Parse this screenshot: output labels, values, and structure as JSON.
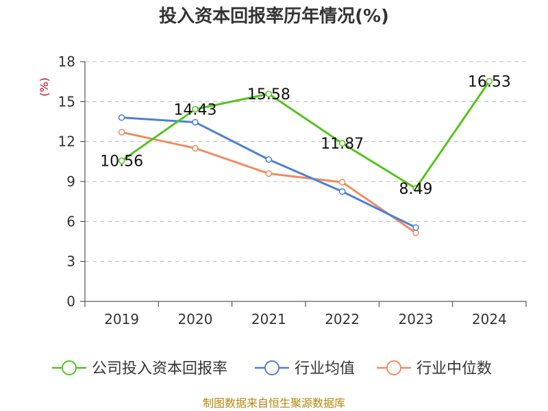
{
  "colors": {
    "company": "#52c41a",
    "industry_avg": "#4a7fdb",
    "industry_median": "#f5895a",
    "axis": "#333333",
    "grid": "#bbbbbb",
    "unit": "#d0021b",
    "source": "#b8860b"
  },
  "source_text": "制图数据来自恒生聚源数据库",
  "chart_data": {
    "type": "line",
    "title": "投入资本回报率历年情况(%)",
    "ylabel": "(%)",
    "xlabel": "",
    "categories": [
      "2019",
      "2020",
      "2021",
      "2022",
      "2023",
      "2024"
    ],
    "ylim": [
      0,
      18
    ],
    "yticks": [
      0,
      3,
      6,
      9,
      12,
      15,
      18
    ],
    "grid": true,
    "legend_position": "bottom",
    "series": [
      {
        "key": "company",
        "name": "公司投入资本回报率",
        "values": [
          10.56,
          14.43,
          15.58,
          11.87,
          8.49,
          16.53
        ],
        "labels": [
          "10.56",
          "14.43",
          "15.58",
          "11.87",
          "8.49",
          "16.53"
        ]
      },
      {
        "key": "industry_avg",
        "name": "行业均值",
        "values": [
          13.8,
          13.45,
          10.65,
          8.25,
          5.55,
          null
        ]
      },
      {
        "key": "industry_median",
        "name": "行业中位数",
        "values": [
          12.7,
          11.5,
          9.6,
          8.95,
          5.15,
          null
        ]
      }
    ]
  }
}
